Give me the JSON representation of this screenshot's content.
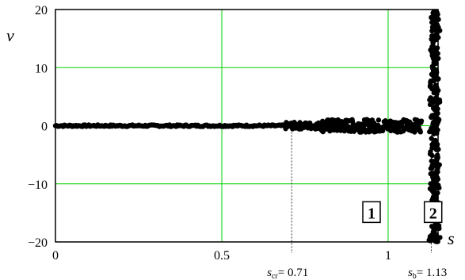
{
  "chart_data": {
    "type": "scatter",
    "title": "",
    "xlabel": "s",
    "ylabel": "ν",
    "xlim": [
      0,
      1.15
    ],
    "ylim": [
      -20,
      20
    ],
    "xticks": [
      {
        "value": 0,
        "label": "0"
      },
      {
        "value": 0.5,
        "label": "0.5"
      },
      {
        "value": 1,
        "label": "1"
      }
    ],
    "yticks": [
      {
        "value": 20,
        "label": "20"
      },
      {
        "value": 10,
        "label": "10"
      },
      {
        "value": 0,
        "label": "0"
      },
      {
        "value": -10,
        "label": "−10"
      },
      {
        "value": -20,
        "label": "−20"
      }
    ],
    "grid": true,
    "colors": {
      "grid": "#00d000",
      "points": "#000000",
      "axes": "#000000"
    },
    "markers": [
      {
        "value": 0.71,
        "label_sym": "s",
        "label_sub": "cr",
        "label_eq": "= 0.71"
      },
      {
        "value": 1.13,
        "label_sym": "s",
        "label_sub": "b",
        "label_eq": "= 1.13"
      }
    ],
    "region_labels": [
      {
        "text": "1",
        "x": 0.95,
        "y": -15
      },
      {
        "text": "2",
        "x": 1.135,
        "y": -15
      }
    ],
    "series": [
      {
        "regions": [
          {
            "x_from": 0.0,
            "x_to": 0.69,
            "y_amp": 0.15,
            "count": 180
          },
          {
            "x_from": 0.69,
            "x_to": 0.8,
            "y_amp": 0.6,
            "count": 60
          },
          {
            "x_from": 0.8,
            "x_to": 1.1,
            "y_amp": 1.1,
            "count": 220
          },
          {
            "x_from": 1.13,
            "x_to": 1.15,
            "y_amp": 20,
            "count": 320
          }
        ]
      }
    ]
  }
}
